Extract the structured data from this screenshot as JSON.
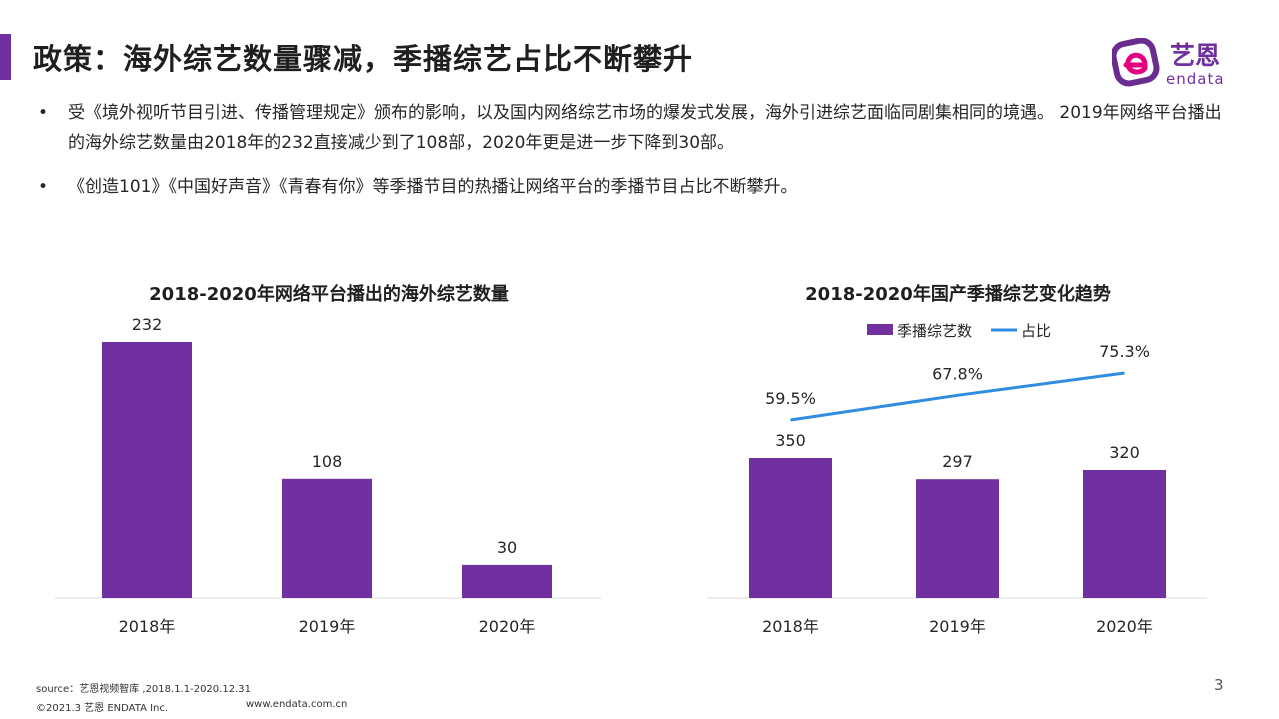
{
  "colors": {
    "accent": "#7030a0",
    "bar": "#7030a0",
    "line": "#2e8de0",
    "logo_pink": "#e4007f"
  },
  "header": {
    "title": "政策：海外综艺数量骤减，季播综艺占比不断攀升"
  },
  "logo": {
    "icon": "endata-e-logo-icon",
    "name": "艺恩",
    "sub": "endata"
  },
  "bullets": [
    {
      "marker": "•",
      "text": "受《境外视听节目引进、传播管理规定》颁布的影响，以及国内网络综艺市场的爆发式发展，海外引进综艺面临同剧集相同的境遇。 2019年网络平台播出的海外综艺数量由2018年的232直接减少到了108部，2020年更是进一步下降到30部。"
    },
    {
      "marker": "•",
      "text": "《创造101》《中国好声音》《青春有你》等季播节目的热播让网络平台的季播节目占比不断攀升。"
    }
  ],
  "chart_data": [
    {
      "type": "bar",
      "title": "2018-2020年网络平台播出的海外综艺数量",
      "categories": [
        "2018年",
        "2019年",
        "2020年"
      ],
      "values": [
        232,
        108,
        30
      ],
      "data_labels": [
        "232",
        "108",
        "30"
      ],
      "ylim": [
        0,
        232
      ],
      "grid": false,
      "legend": "none"
    },
    {
      "type": "bar",
      "title": "2018-2020年国产季播综艺变化趋势",
      "categories": [
        "2018年",
        "2019年",
        "2020年"
      ],
      "series": [
        {
          "name": "季播综艺数",
          "type": "bar",
          "values": [
            350,
            297,
            320
          ],
          "data_labels": [
            "350",
            "297",
            "320"
          ]
        },
        {
          "name": "占比",
          "type": "line",
          "values": [
            59.5,
            67.8,
            75.3
          ],
          "data_labels": [
            "59.5%",
            "67.8%",
            "75.3%"
          ],
          "unit": "%"
        }
      ],
      "ylim": [
        0,
        350
      ],
      "y2lim": [
        59.5,
        75.3
      ],
      "grid": false,
      "legend": "top"
    }
  ],
  "footer": {
    "source": "source：艺恩视频智库 ,2018.1.1-2020.12.31",
    "copyright": "©2021.3 艺恩 ENDATA Inc.",
    "website": "www.endata.com.cn"
  },
  "page_number": "3"
}
